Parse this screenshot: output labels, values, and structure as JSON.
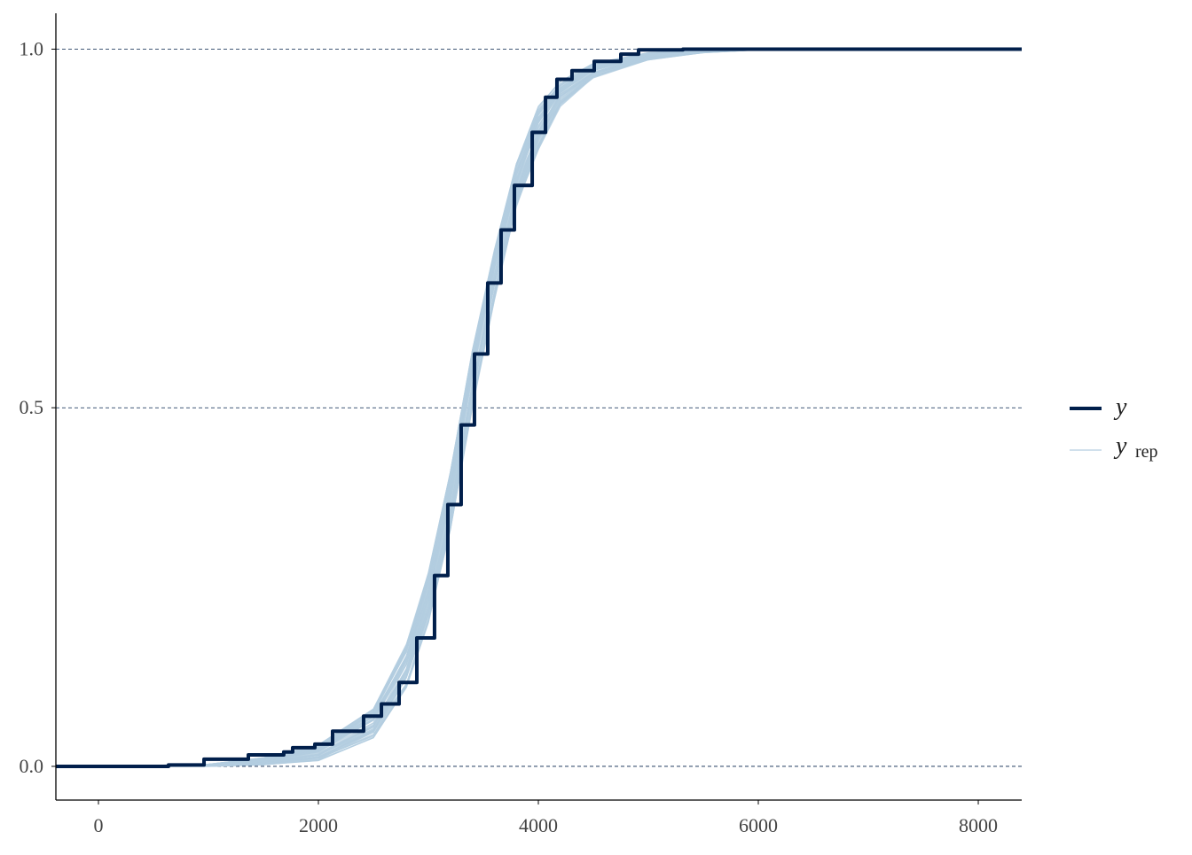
{
  "chart_data": {
    "type": "line",
    "title": "",
    "xlabel": "",
    "ylabel": "",
    "xlim": [
      -387,
      8395
    ],
    "ylim": [
      -0.047,
      1.05
    ],
    "x_ticks": [
      0,
      2000,
      4000,
      6000,
      8000
    ],
    "x_tick_labels": [
      "0",
      "2000",
      "4000",
      "6000",
      "8000"
    ],
    "y_ticks": [
      0,
      0.5,
      1
    ],
    "y_tick_labels": [
      "0.0",
      "0.5",
      "1.0"
    ],
    "grid": "horizontal dashed at y ticks",
    "legend_placement": "right",
    "series": [
      {
        "name": "y",
        "color": "#011f4b",
        "step": true,
        "x": [
          -387,
          113,
          637,
          960,
          1363,
          1685,
          1766,
          1968,
          2129,
          2411,
          2573,
          2734,
          2895,
          3056,
          3177,
          3298,
          3419,
          3540,
          3661,
          3782,
          3944,
          4065,
          4169,
          4306,
          4508,
          4750,
          4911,
          5315,
          8395
        ],
        "values": [
          0,
          0,
          0.002,
          0.01,
          0.016,
          0.02,
          0.026,
          0.031,
          0.049,
          0.07,
          0.087,
          0.117,
          0.179,
          0.266,
          0.365,
          0.476,
          0.575,
          0.674,
          0.748,
          0.81,
          0.884,
          0.933,
          0.958,
          0.97,
          0.983,
          0.993,
          0.999,
          1,
          1
        ]
      }
    ],
    "yrep": {
      "name_main": "y",
      "name_sub": "rep",
      "color": "#b3cde0",
      "x": [
        -387,
        0,
        1000,
        1500,
        2000,
        2500,
        2800,
        3000,
        3200,
        3400,
        3600,
        3800,
        4000,
        4200,
        4500,
        5000,
        5500,
        6000,
        8395
      ],
      "lower": [
        0,
        0,
        0,
        0.002,
        0.008,
        0.04,
        0.11,
        0.2,
        0.33,
        0.5,
        0.65,
        0.78,
        0.86,
        0.92,
        0.96,
        0.985,
        0.995,
        0.999,
        1
      ],
      "upper": [
        0,
        0,
        0.003,
        0.012,
        0.03,
        0.08,
        0.17,
        0.27,
        0.41,
        0.58,
        0.72,
        0.84,
        0.92,
        0.955,
        0.98,
        0.995,
        0.999,
        1,
        1
      ]
    }
  }
}
